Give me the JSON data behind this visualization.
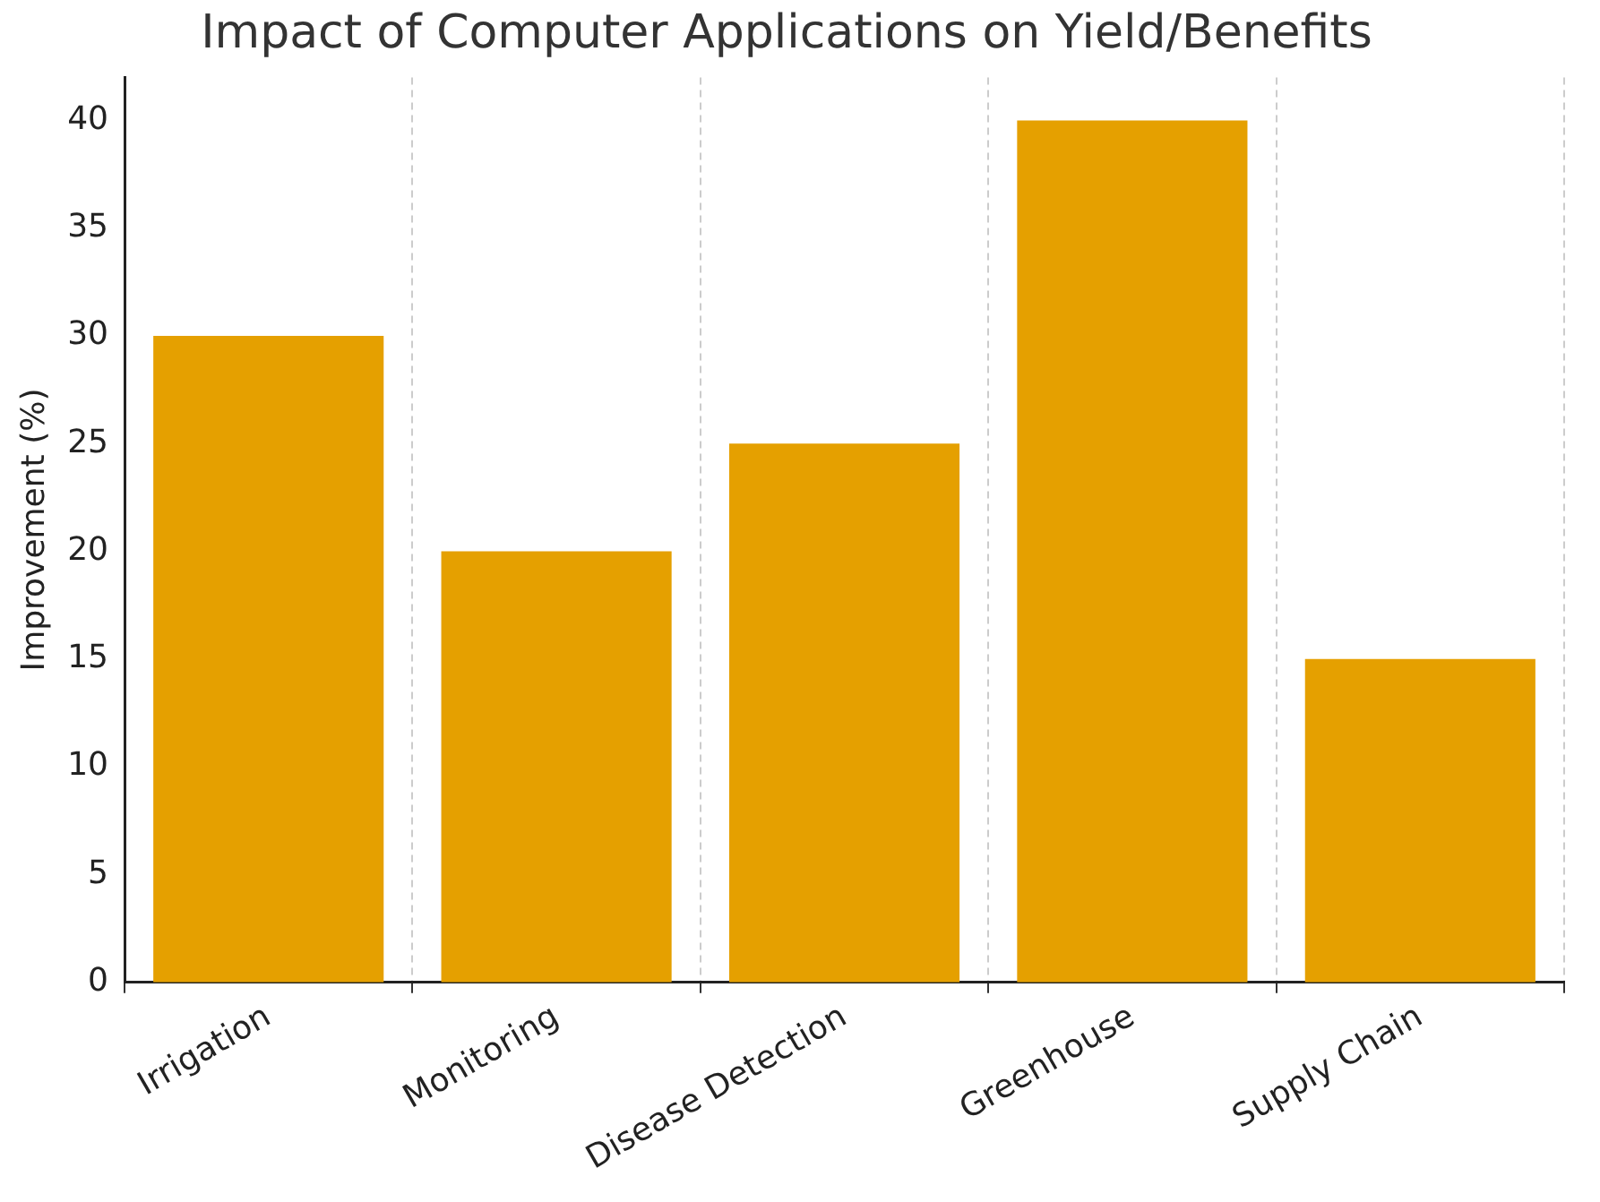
{
  "chart_data": {
    "type": "bar",
    "title": "Impact of Computer Applications on Yield/Benefits",
    "ylabel": "Improvement (%)",
    "categories": [
      "Irrigation",
      "Monitoring",
      "Disease Detection",
      "Greenhouse",
      "Supply Chain"
    ],
    "values": [
      30,
      20,
      25,
      40,
      15
    ],
    "color": "#e5a000",
    "ylim": [
      0,
      42
    ],
    "yticks": [
      0,
      5,
      10,
      15,
      20,
      25,
      30,
      35,
      40
    ],
    "grid": "x"
  }
}
